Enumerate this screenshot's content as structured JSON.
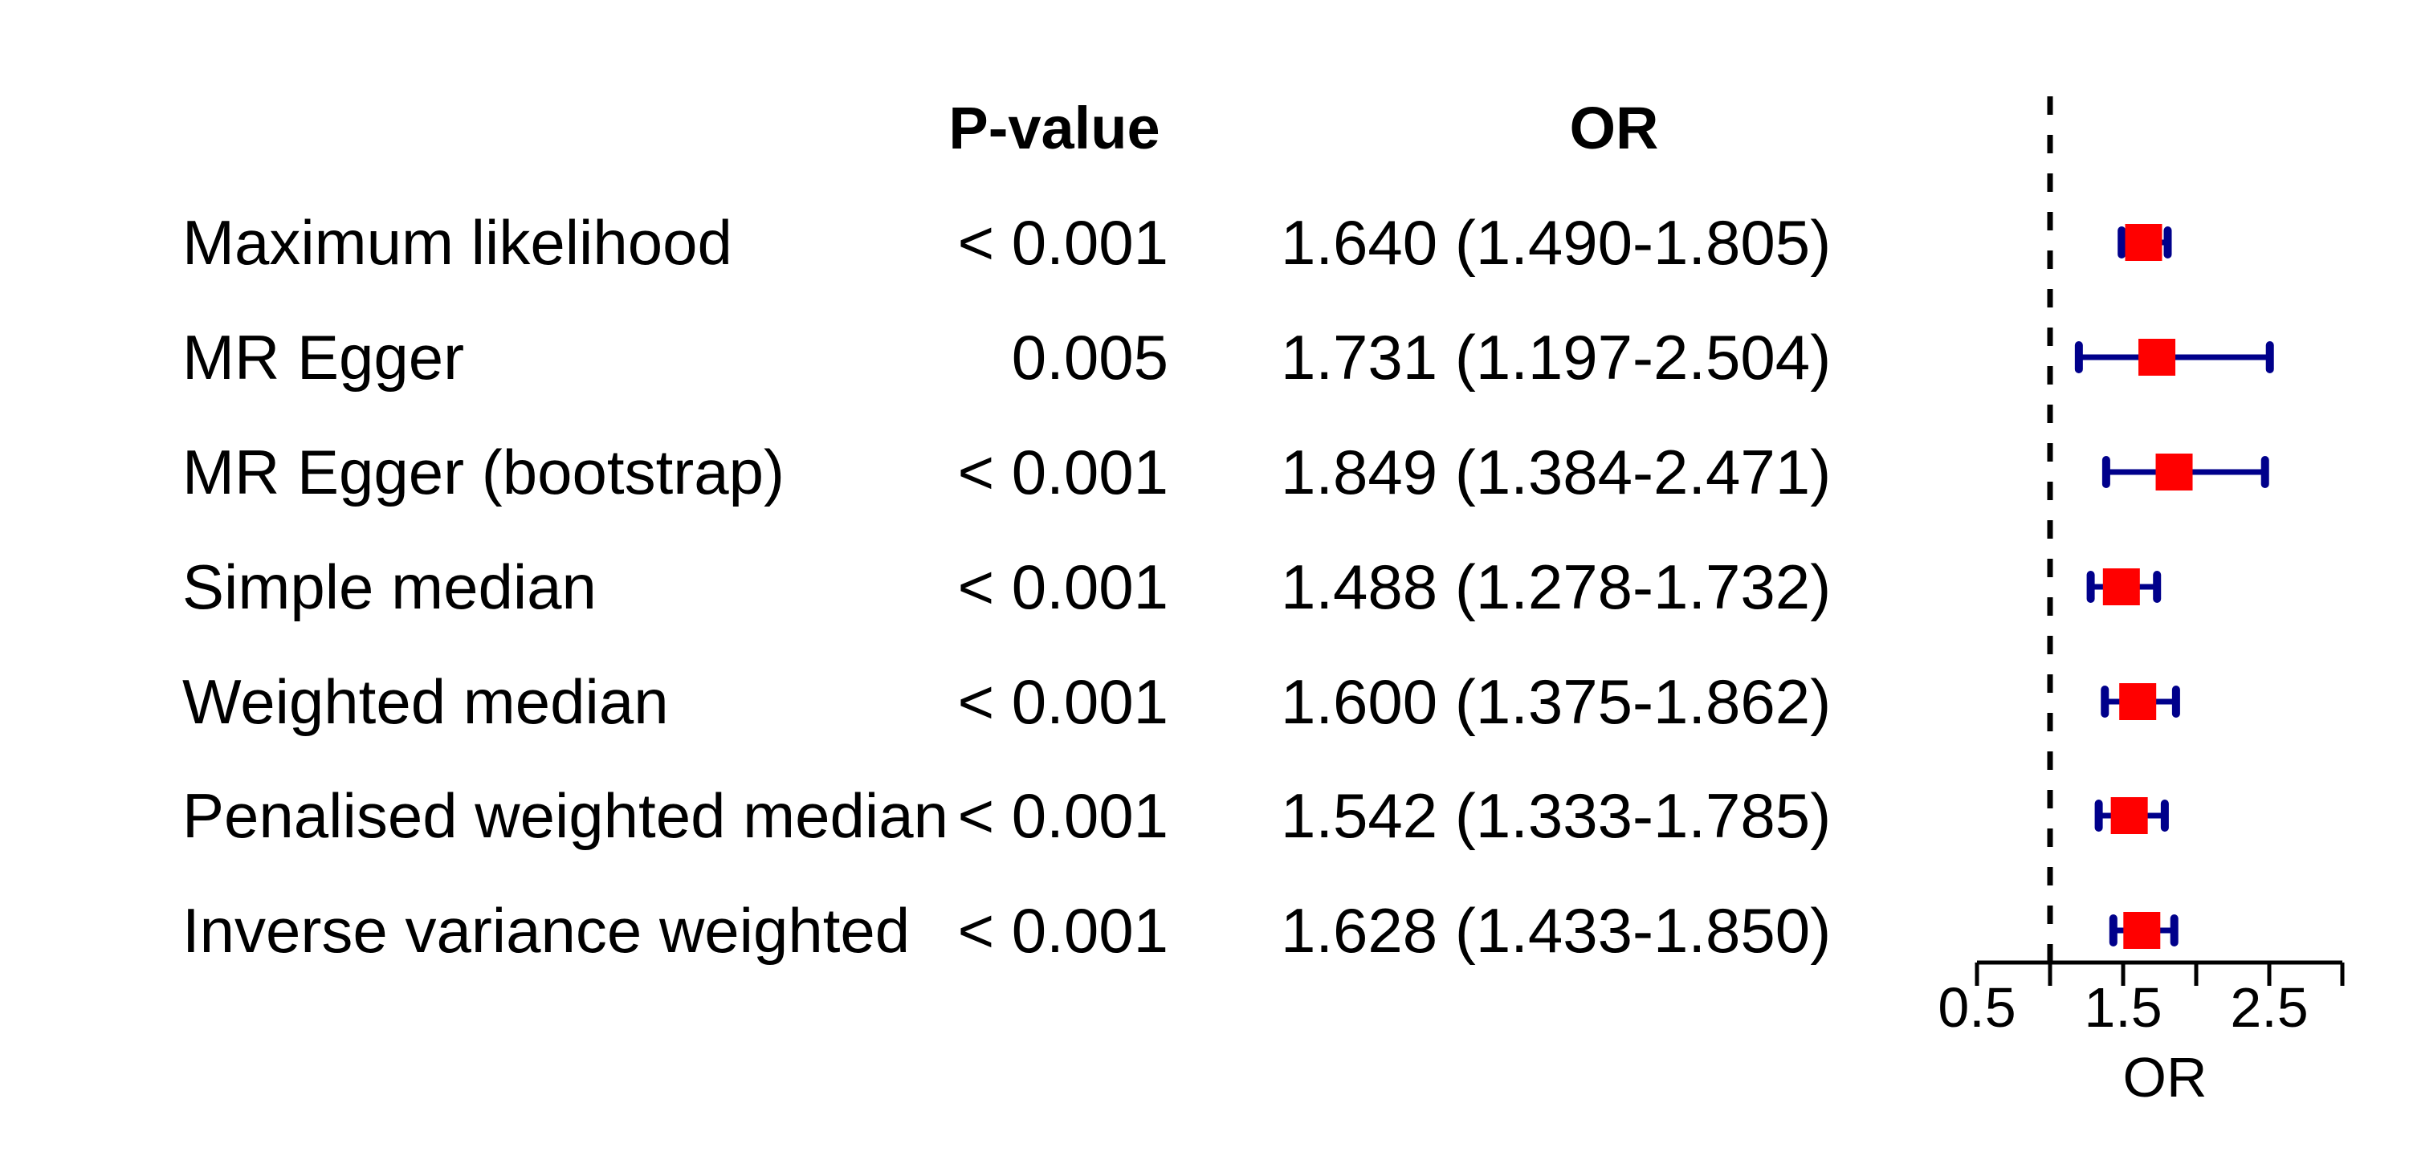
{
  "figure": {
    "headers": {
      "p_value": "P-value",
      "or": "OR"
    },
    "rows": [
      {
        "method": "Maximum likelihood",
        "p_value": "< 0.001",
        "or_text": "1.640 (1.490-1.805)"
      },
      {
        "method": "MR Egger",
        "p_value": "0.005",
        "or_text": "1.731 (1.197-2.504)"
      },
      {
        "method": "MR Egger (bootstrap)",
        "p_value": "< 0.001",
        "or_text": "1.849 (1.384-2.471)"
      },
      {
        "method": "Simple median",
        "p_value": "< 0.001",
        "or_text": "1.488 (1.278-1.732)"
      },
      {
        "method": "Weighted median",
        "p_value": "< 0.001",
        "or_text": "1.600 (1.375-1.862)"
      },
      {
        "method": "Penalised weighted median",
        "p_value": "< 0.001",
        "or_text": "1.542 (1.333-1.785)"
      },
      {
        "method": "Inverse variance weighted",
        "p_value": "< 0.001",
        "or_text": "1.628 (1.433-1.850)"
      }
    ],
    "x_axis": {
      "label": "OR",
      "tick_labels": [
        "0.5",
        "1.5",
        "2.5"
      ]
    }
  },
  "chart_data": {
    "type": "scatter",
    "subtype": "forest-plot",
    "title": "",
    "categories": [
      "Maximum likelihood",
      "MR Egger",
      "MR Egger (bootstrap)",
      "Simple median",
      "Weighted median",
      "Penalised weighted median",
      "Inverse variance weighted"
    ],
    "series": [
      {
        "name": "OR",
        "values": [
          1.64,
          1.731,
          1.849,
          1.488,
          1.6,
          1.542,
          1.628
        ]
      },
      {
        "name": "CI_lower",
        "values": [
          1.49,
          1.197,
          1.384,
          1.278,
          1.375,
          1.333,
          1.433
        ]
      },
      {
        "name": "CI_upper",
        "values": [
          1.805,
          2.504,
          2.471,
          1.732,
          1.862,
          1.785,
          1.85
        ]
      }
    ],
    "p_values": [
      "< 0.001",
      "0.005",
      "< 0.001",
      "< 0.001",
      "< 0.001",
      "< 0.001",
      "< 0.001"
    ],
    "xlabel": "OR",
    "xticks": [
      0.5,
      1.0,
      1.5,
      2.0,
      2.5,
      3.0
    ],
    "xtick_labels": [
      "0.5",
      "",
      "1.5",
      "",
      "2.5",
      ""
    ],
    "xlim": [
      0.5,
      3.0
    ],
    "reference_line": 1.0,
    "grid": false,
    "legend": false,
    "colors": {
      "marker": "#FF0000",
      "ci": "#00008B",
      "axis": "#000000",
      "text": "#000000",
      "reference": "#000000"
    }
  }
}
